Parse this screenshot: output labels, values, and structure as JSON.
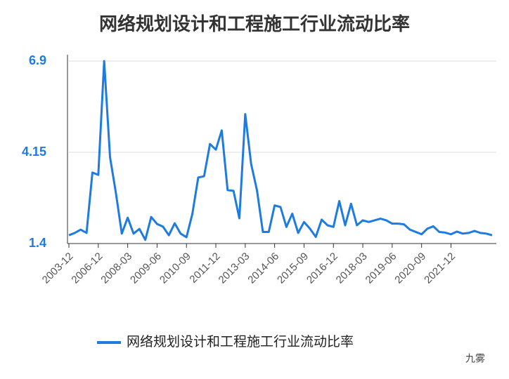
{
  "chart_data": {
    "type": "line",
    "title": "网络规划设计和工程施工行业流动比率",
    "categories": [
      "2003-12",
      null,
      null,
      null,
      null,
      "2006-12",
      null,
      null,
      null,
      null,
      "2008-03",
      null,
      null,
      null,
      null,
      "2009-06",
      null,
      null,
      null,
      null,
      "2010-09",
      null,
      null,
      null,
      null,
      "2011-12",
      null,
      null,
      null,
      null,
      "2013-03",
      null,
      null,
      null,
      null,
      "2014-06",
      null,
      null,
      null,
      null,
      "2015-09",
      null,
      null,
      null,
      null,
      "2016-12",
      null,
      null,
      null,
      null,
      "2018-03",
      null,
      null,
      null,
      null,
      "2019-06",
      null,
      null,
      null,
      null,
      "2020-09",
      null,
      null,
      null,
      null,
      "2021-12",
      null,
      null,
      null,
      null,
      null,
      null,
      null
    ],
    "series": [
      {
        "name": "网络规划设计和工程施工行业流动比率",
        "color": "#1e7be0",
        "values": [
          1.65,
          1.72,
          1.82,
          1.72,
          3.54,
          3.47,
          6.9,
          4.0,
          2.92,
          1.7,
          2.18,
          1.7,
          1.84,
          1.51,
          2.2,
          1.99,
          1.91,
          1.65,
          2.01,
          1.7,
          1.59,
          2.29,
          3.39,
          3.43,
          4.4,
          4.23,
          4.81,
          3.01,
          2.99,
          2.16,
          5.3,
          3.8,
          3.0,
          1.75,
          1.75,
          2.55,
          2.5,
          1.9,
          2.3,
          1.72,
          2.05,
          1.85,
          1.6,
          2.12,
          1.95,
          1.9,
          2.68,
          1.95,
          2.6,
          1.95,
          2.1,
          2.05,
          2.1,
          2.15,
          2.1,
          2.0,
          2.0,
          1.98,
          1.82,
          1.75,
          1.68,
          1.85,
          1.92,
          1.75,
          1.73,
          1.68,
          1.76,
          1.7,
          1.72,
          1.78,
          1.72,
          1.7,
          1.65
        ]
      }
    ],
    "ylim": [
      1.4,
      6.9
    ],
    "yticks": [
      1.4,
      4.15,
      6.9
    ],
    "grid": true,
    "legend": "bottom",
    "watermark": "九雾"
  }
}
